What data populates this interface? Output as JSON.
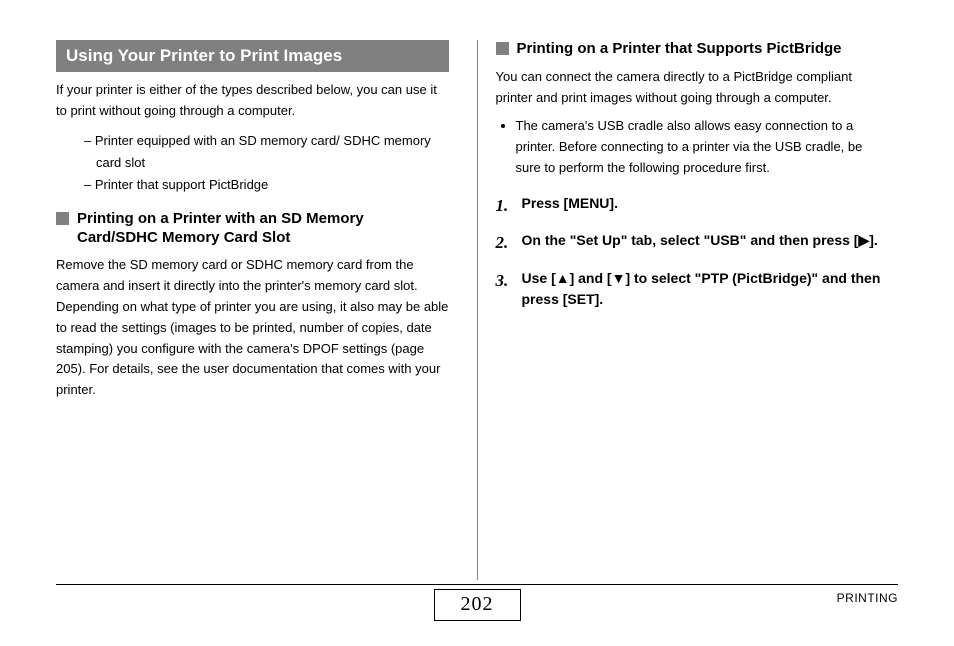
{
  "left": {
    "banner": "Using Your Printer to Print Images",
    "intro": "If your printer is either of the types described below, you can use it to print without going through a computer.",
    "dash_items": [
      "Printer equipped with an SD memory card/ SDHC memory card slot",
      "Printer that support PictBridge"
    ],
    "subhead": "Printing on a Printer with an SD Memory Card/SDHC Memory Card Slot",
    "subbody": "Remove the SD memory card or SDHC memory card from the camera and insert it directly into the printer's memory card slot. Depending on what type of printer you are using, it also may be able to read the settings (images to be printed, number of copies, date stamping) you configure with the camera's DPOF settings (page 205). For details, see the user documentation that comes with your printer."
  },
  "right": {
    "subhead": "Printing on a Printer that Supports PictBridge",
    "intro": "You can connect the camera directly to a PictBridge compliant printer and print images without going through a computer.",
    "bullet": "The camera's USB cradle also allows easy connection to a printer. Before connecting to a printer via the USB cradle, be sure to perform the following procedure first.",
    "steps": [
      "Press [MENU].",
      "On the \"Set Up\" tab, select \"USB\" and then press [▶].",
      "Use [▲] and [▼] to select \"PTP (PictBridge)\" and then press [SET]."
    ]
  },
  "footer": {
    "page": "202",
    "section": "PRINTING"
  }
}
